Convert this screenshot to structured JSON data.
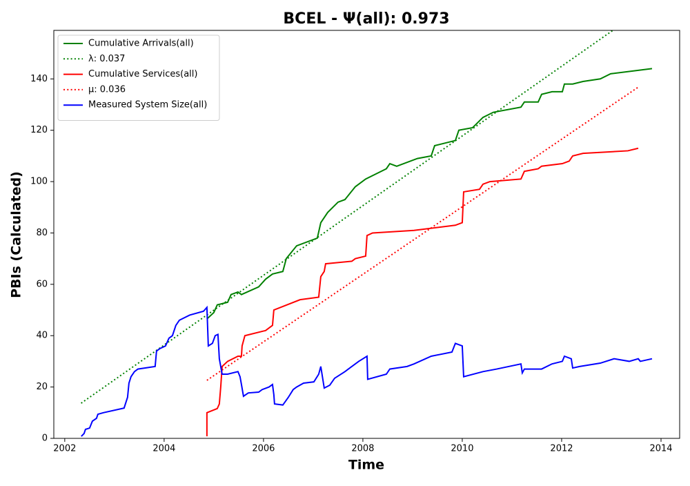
{
  "chart_data": {
    "type": "line",
    "title": "BCEL -  Ψ(all): 0.973",
    "xlabel": "Time",
    "ylabel": "PBIs (Calculated)",
    "xlim": [
      2001.78,
      2014.375
    ],
    "ylim": [
      0,
      158.9
    ],
    "xticks": [
      2002,
      2004,
      2006,
      2008,
      2010,
      2012,
      2014
    ],
    "yticks": [
      0,
      20,
      40,
      60,
      80,
      100,
      120,
      140
    ],
    "legend": "upper left",
    "series": [
      {
        "name": "Cumulative Arrivals(all)",
        "color": "#008000",
        "linestyle": "solid",
        "x": [
          2004.861,
          2005.0,
          2005.069,
          2005.278,
          2005.347,
          2005.486,
          2005.556,
          2005.903,
          2006.042,
          2006.181,
          2006.389,
          2006.458,
          2006.667,
          2007.083,
          2007.153,
          2007.292,
          2007.5,
          2007.639,
          2007.847,
          2008.056,
          2008.472,
          2008.542,
          2008.681,
          2009.097,
          2009.375,
          2009.444,
          2009.861,
          2009.931,
          2010.208,
          2010.417,
          2010.625,
          2011.181,
          2011.25,
          2011.528,
          2011.597,
          2011.806,
          2012.014,
          2012.056,
          2012.222,
          2012.431,
          2012.778,
          2012.986,
          2013.819
        ],
        "values": [
          46.5,
          49,
          52,
          53,
          56,
          57,
          56,
          59,
          62,
          64,
          65,
          70,
          75,
          78,
          84,
          88,
          92,
          93,
          98,
          101,
          105,
          107,
          106,
          109,
          110,
          114,
          116,
          120,
          121,
          125,
          127,
          129,
          131,
          131,
          134,
          135,
          135,
          138,
          138,
          139,
          140,
          142,
          144
        ]
      },
      {
        "name": "λ: 0.037",
        "color": "#008000",
        "linestyle": "dotted",
        "x": [
          2002.33,
          2013.03
        ],
        "values": [
          13.7,
          158.9
        ]
      },
      {
        "name": "Cumulative Services(all)",
        "color": "#ff0000",
        "linestyle": "solid",
        "x": [
          2004.861,
          2004.861,
          2005.069,
          2005.111,
          2005.139,
          2005.167,
          2005.278,
          2005.486,
          2005.556,
          2005.569,
          2005.625,
          2006.042,
          2006.111,
          2006.181,
          2006.208,
          2006.736,
          2007.111,
          2007.153,
          2007.222,
          2007.25,
          2007.778,
          2007.847,
          2008.056,
          2008.083,
          2008.194,
          2009.028,
          2009.861,
          2010.0,
          2010.028,
          2010.347,
          2010.417,
          2010.556,
          2011.181,
          2011.25,
          2011.528,
          2011.597,
          2012.014,
          2012.153,
          2012.222,
          2012.431,
          2013.333,
          2013.542
        ],
        "values": [
          0.8,
          10,
          11.6,
          13.4,
          20,
          28,
          30,
          32,
          32,
          36,
          40,
          42,
          43,
          44,
          50,
          54,
          55,
          63,
          65,
          68,
          69,
          70,
          71,
          79,
          80,
          81,
          83,
          84,
          96,
          97,
          99,
          100,
          101,
          104,
          105,
          106,
          107,
          108,
          110,
          111,
          112,
          113
        ]
      },
      {
        "name": "μ: 0.036",
        "color": "#ff0000",
        "linestyle": "dotted",
        "x": [
          2004.861,
          2013.542
        ],
        "values": [
          22.6,
          136.8
        ]
      },
      {
        "name": "Measured System Size(all)",
        "color": "#0000ff",
        "linestyle": "solid",
        "x": [
          2002.333,
          2002.389,
          2002.417,
          2002.5,
          2002.556,
          2002.639,
          2002.667,
          2002.778,
          2003.194,
          2003.264,
          2003.292,
          2003.333,
          2003.403,
          2003.472,
          2003.819,
          2003.847,
          2003.917,
          2004.028,
          2004.097,
          2004.167,
          2004.236,
          2004.306,
          2004.514,
          2004.792,
          2004.861,
          2004.889,
          2004.972,
          2005.028,
          2005.083,
          2005.111,
          2005.167,
          2005.278,
          2005.486,
          2005.528,
          2005.556,
          2005.597,
          2005.694,
          2005.903,
          2005.972,
          2006.111,
          2006.181,
          2006.208,
          2006.222,
          2006.389,
          2006.5,
          2006.597,
          2006.667,
          2006.806,
          2007.014,
          2007.111,
          2007.153,
          2007.222,
          2007.333,
          2007.431,
          2007.639,
          2007.917,
          2008.083,
          2008.097,
          2008.472,
          2008.542,
          2008.889,
          2009.028,
          2009.375,
          2009.792,
          2009.861,
          2010.0,
          2010.028,
          2010.417,
          2010.694,
          2011.181,
          2011.208,
          2011.25,
          2011.597,
          2011.806,
          2012.014,
          2012.056,
          2012.194,
          2012.222,
          2012.361,
          2012.778,
          2013.056,
          2013.361,
          2013.542,
          2013.583,
          2013.819
        ],
        "values": [
          0.8,
          1.9,
          3.5,
          4,
          6.7,
          7.8,
          9.4,
          10,
          11.8,
          16,
          21.5,
          24,
          26,
          27,
          28,
          34,
          35,
          36,
          39,
          40,
          44,
          46,
          48,
          49.5,
          51,
          36,
          37,
          40,
          40.5,
          31,
          25,
          25,
          26,
          24,
          21,
          16.4,
          17.7,
          18,
          19,
          20,
          21,
          17,
          13.4,
          13,
          16,
          19,
          20,
          21.5,
          22,
          25,
          28,
          19.6,
          20.7,
          23.4,
          26,
          30,
          32,
          23,
          25,
          27,
          28,
          29,
          32,
          33.6,
          37,
          36,
          24,
          26,
          27,
          29,
          25.5,
          27,
          27,
          29,
          30,
          32,
          31,
          27.4,
          28,
          29.3,
          31,
          30,
          31,
          30,
          31
        ]
      }
    ]
  }
}
